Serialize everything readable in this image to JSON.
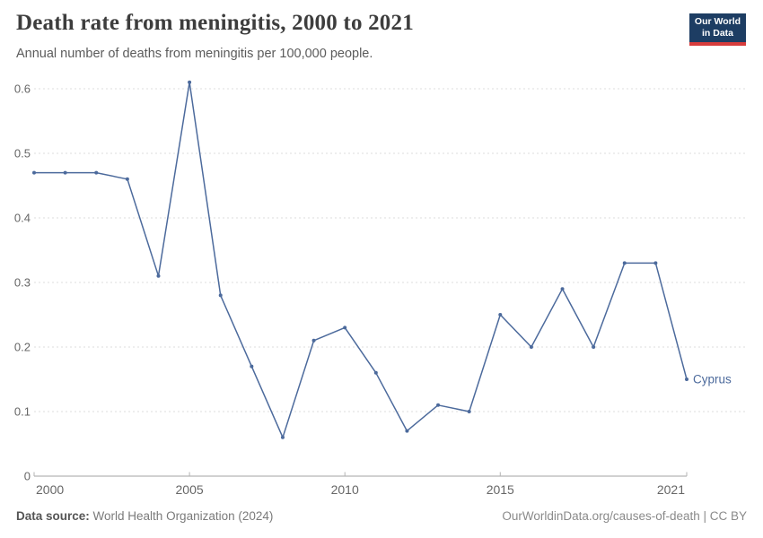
{
  "header": {
    "title": "Death rate from meningitis, 2000 to 2021",
    "subtitle": "Annual number of deaths from meningitis per 100,000 people.",
    "logo": {
      "line1": "Our World",
      "line2": "in Data",
      "bg_color": "#1d3d63",
      "bar_color": "#d73c3c"
    }
  },
  "chart_data": {
    "type": "line",
    "title": "Death rate from meningitis, 2000 to 2021",
    "xlabel": "",
    "ylabel": "Annual number of deaths from meningitis per 100,000 people",
    "x": [
      2000,
      2001,
      2002,
      2003,
      2004,
      2005,
      2006,
      2007,
      2008,
      2009,
      2010,
      2011,
      2012,
      2013,
      2014,
      2015,
      2016,
      2017,
      2018,
      2019,
      2020,
      2021
    ],
    "series": [
      {
        "name": "Cyprus",
        "color": "#4c6a9c",
        "values": [
          0.47,
          0.47,
          0.47,
          0.46,
          0.31,
          0.61,
          0.28,
          0.17,
          0.06,
          0.21,
          0.23,
          0.16,
          0.07,
          0.11,
          0.1,
          0.25,
          0.2,
          0.29,
          0.2,
          0.33,
          0.33,
          0.15
        ]
      }
    ],
    "x_ticks": [
      2000,
      2005,
      2010,
      2015,
      2021
    ],
    "y_ticks": [
      0,
      0.1,
      0.2,
      0.3,
      0.4,
      0.5,
      0.6
    ],
    "ylim": [
      0,
      0.62
    ],
    "xlim": [
      2000,
      2021
    ],
    "grid": "horizontal-dashed",
    "legend_position": "end-of-line-label",
    "colors": {
      "grid": "#dedede",
      "axis": "#a3a3a3",
      "tick": "#b3b3b3",
      "tick_label": "#666666",
      "series": "#4c6a9c"
    }
  },
  "footer": {
    "source_label": "Data source:",
    "source_value": " World Health Organization (2024)",
    "credit": "OurWorldinData.org/causes-of-death | CC BY"
  }
}
